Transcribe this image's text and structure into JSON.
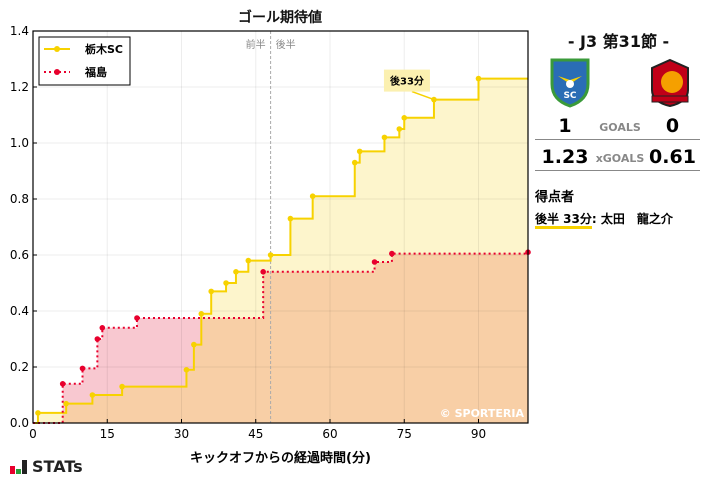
{
  "chart_title": "ゴール期待値",
  "legend": {
    "home": "栃木SC",
    "away": "福島"
  },
  "half_labels": {
    "first": "前半",
    "second": "後半"
  },
  "annotation": "後33分",
  "watermark": "© SPORTERIA",
  "xlabel": "キックオフからの経過時間(分)",
  "brand": "STATs",
  "side": {
    "round": "-  J3 第31節  -",
    "goals": {
      "home": "1",
      "label": "GOALS",
      "away": "0"
    },
    "xgoals": {
      "home": "1.23",
      "label": "xGOALS",
      "away": "0.61"
    },
    "scorers_title": "得点者",
    "scorers": [
      {
        "time": "後半 33分",
        "name": ": 太田　龍之介"
      }
    ]
  },
  "colors": {
    "home": "#f7d200",
    "away": "#e8002d",
    "home_fill": "#fdf5cc",
    "away_fill": "#f8c8d0",
    "overlap_fill": "#f8cfa6"
  },
  "chart_data": {
    "type": "line",
    "title": "ゴール期待値",
    "xlabel": "キックオフからの経過時間(分)",
    "ylabel": "",
    "xlim": [
      0,
      100
    ],
    "ylim": [
      0,
      1.4
    ],
    "xticks": [
      0,
      15,
      30,
      45,
      60,
      75,
      90
    ],
    "yticks": [
      0.0,
      0.2,
      0.4,
      0.6,
      0.8,
      1.0,
      1.2,
      1.4
    ],
    "grid": true,
    "legend_position": "upper left",
    "step": true,
    "series": [
      {
        "name": "栃木SC",
        "x": [
          0,
          1,
          6.7,
          12,
          18,
          31,
          32.5,
          34,
          36,
          39,
          41,
          43.5,
          48,
          52,
          56.5,
          65,
          66,
          71,
          74,
          75,
          81,
          90,
          100
        ],
        "y": [
          0,
          0.036,
          0.069,
          0.1,
          0.13,
          0.19,
          0.28,
          0.39,
          0.47,
          0.5,
          0.54,
          0.58,
          0.6,
          0.73,
          0.81,
          0.93,
          0.97,
          1.02,
          1.05,
          1.09,
          1.155,
          1.23,
          1.23
        ]
      },
      {
        "name": "福島",
        "x": [
          0,
          6,
          10,
          13,
          14,
          21,
          46.5,
          69,
          72.5,
          100
        ],
        "y": [
          0,
          0.14,
          0.195,
          0.3,
          0.34,
          0.375,
          0.54,
          0.575,
          0.605,
          0.61
        ]
      }
    ],
    "annotations": [
      {
        "text": "後33分",
        "x": 81,
        "y": 1.155
      }
    ],
    "halftime_x": 48
  }
}
